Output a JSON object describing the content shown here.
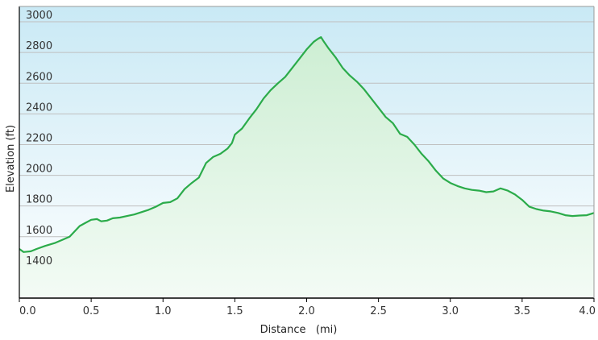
{
  "chart_data": {
    "type": "area",
    "title": "",
    "xlabel": "Distance   (mi)",
    "ylabel": "Elevation (ft)",
    "xlim": [
      0,
      4.0
    ],
    "ylim": [
      1200,
      3100
    ],
    "x_ticks": [
      "0.0",
      "0.5",
      "1.0",
      "1.5",
      "2.0",
      "2.5",
      "3.0",
      "3.5",
      "4.0"
    ],
    "y_ticks": [
      "1400",
      "1600",
      "1800",
      "2000",
      "2200",
      "2400",
      "2600",
      "2800",
      "3000"
    ],
    "grid": true,
    "legend": "none",
    "colors": {
      "line": "#2bab4a",
      "plot_top": "#c9e9f5",
      "plot_bottom": "#ffffff",
      "fill_top": "#cdeed3",
      "fill_bottom": "#f3fbf5",
      "grid": "#bfbfbf",
      "axis": "#000000"
    },
    "series": [
      {
        "x": [
          0.0,
          0.03,
          0.08,
          0.12,
          0.18,
          0.25,
          0.3,
          0.35,
          0.38,
          0.42,
          0.46,
          0.5,
          0.54,
          0.57,
          0.61,
          0.65,
          0.7,
          0.75,
          0.8,
          0.85,
          0.9,
          0.95,
          1.0,
          1.05,
          1.1,
          1.15,
          1.2,
          1.25,
          1.3,
          1.35,
          1.4,
          1.45,
          1.48,
          1.5,
          1.55,
          1.6,
          1.65,
          1.7,
          1.75,
          1.8,
          1.85,
          1.9,
          1.95,
          2.0,
          2.05,
          2.08,
          2.1,
          2.12,
          2.15,
          2.2,
          2.25,
          2.3,
          2.35,
          2.4,
          2.45,
          2.5,
          2.55,
          2.6,
          2.65,
          2.7,
          2.75,
          2.8,
          2.85,
          2.9,
          2.95,
          3.0,
          3.05,
          3.1,
          3.15,
          3.2,
          3.25,
          3.3,
          3.35,
          3.4,
          3.45,
          3.5,
          3.55,
          3.6,
          3.65,
          3.7,
          3.75,
          3.8,
          3.85,
          3.9,
          3.95,
          4.0
        ],
        "y": [
          1520,
          1500,
          1505,
          1520,
          1540,
          1560,
          1580,
          1600,
          1630,
          1670,
          1690,
          1710,
          1715,
          1700,
          1705,
          1720,
          1725,
          1735,
          1745,
          1760,
          1775,
          1795,
          1820,
          1825,
          1850,
          1910,
          1950,
          1985,
          2080,
          2120,
          2140,
          2175,
          2210,
          2265,
          2305,
          2370,
          2430,
          2500,
          2555,
          2600,
          2640,
          2700,
          2760,
          2820,
          2870,
          2890,
          2900,
          2870,
          2830,
          2770,
          2700,
          2650,
          2610,
          2560,
          2500,
          2440,
          2380,
          2340,
          2270,
          2250,
          2200,
          2140,
          2090,
          2030,
          1980,
          1950,
          1930,
          1915,
          1905,
          1900,
          1890,
          1895,
          1915,
          1900,
          1875,
          1840,
          1795,
          1780,
          1770,
          1765,
          1755,
          1740,
          1735,
          1738,
          1740,
          1755
        ]
      }
    ]
  }
}
